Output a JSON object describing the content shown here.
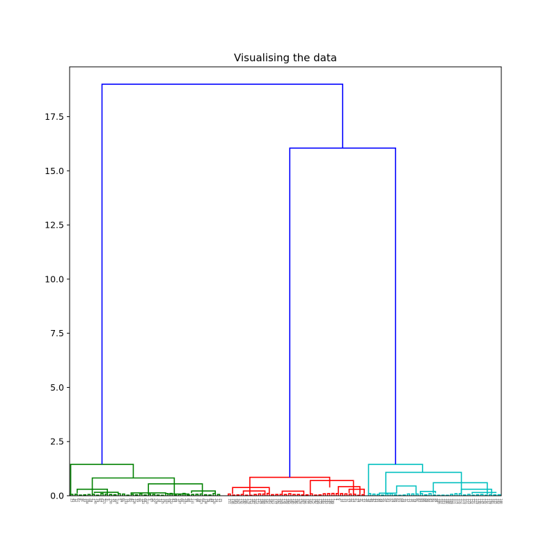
{
  "chart_data": {
    "type": "dendrogram",
    "title": "Visualising the data",
    "xlabel": "",
    "ylabel": "",
    "ylim": [
      0,
      19.8
    ],
    "yticks": [
      {
        "value": 0.0,
        "label": "0.0"
      },
      {
        "value": 2.5,
        "label": "2.5"
      },
      {
        "value": 5.0,
        "label": "5.0"
      },
      {
        "value": 7.5,
        "label": "7.5"
      },
      {
        "value": 10.0,
        "label": "10.0"
      },
      {
        "value": 12.5,
        "label": "12.5"
      },
      {
        "value": 15.0,
        "label": "15.0"
      },
      {
        "value": 17.5,
        "label": "17.5"
      }
    ],
    "leaf_count": 200,
    "colors": {
      "top_links": "#0000ff",
      "cluster_green": "#008000",
      "cluster_red": "#ff0000",
      "cluster_cyan": "#00bfbf"
    },
    "top_merges": [
      {
        "left": "cluster-green",
        "right": "merge-red-cyan",
        "height": 19.0
      },
      {
        "left": "cluster-red",
        "right": "cluster-cyan",
        "height": 16.05,
        "name": "merge-red-cyan"
      }
    ],
    "clusters": [
      {
        "name": "cluster-green",
        "color": "#008000",
        "leaf_range": [
          0,
          70
        ],
        "root_height": 1.45,
        "merges": [
          {
            "x1": 0.5,
            "x2": 29.5,
            "h": 1.45
          },
          {
            "x1": 10.5,
            "x2": 48.5,
            "h": 0.82
          },
          {
            "x1": 3.5,
            "x2": 17.5,
            "h": 0.3
          },
          {
            "x1": 36.5,
            "x2": 61.5,
            "h": 0.55
          },
          {
            "x1": 56.5,
            "x2": 67.5,
            "h": 0.22
          },
          {
            "x1": 11.5,
            "x2": 22.5,
            "h": 0.16
          },
          {
            "x1": 28.5,
            "x2": 44.5,
            "h": 0.13
          },
          {
            "x1": 45.5,
            "x2": 55.5,
            "h": 0.08
          }
        ],
        "leaf_labels": [
          "23",
          "45",
          "12",
          "67",
          "8",
          "91",
          "33",
          "104",
          "56",
          "78",
          "2",
          "140",
          "19",
          "87",
          "63",
          "115",
          "41",
          "9",
          "150",
          "72",
          "30",
          "118",
          "5",
          "99",
          "61",
          "133",
          "14",
          "82",
          "47",
          "126",
          "37",
          "95",
          "21",
          "143",
          "68",
          "110",
          "3",
          "85",
          "52",
          "128",
          "26",
          "74",
          "135",
          "16",
          "101",
          "59",
          "122",
          "43",
          "89",
          "11",
          "147",
          "66",
          "107",
          "29",
          "80",
          "53",
          "131",
          "7",
          "96",
          "38",
          "113",
          "64",
          "138",
          "18",
          "92",
          "49",
          "120",
          "34",
          "77",
          "25"
        ]
      },
      {
        "name": "cluster-red",
        "color": "#ff0000",
        "leaf_range": [
          73,
          138
        ],
        "root_height": 0.85,
        "merges": [
          {
            "x1": 83.5,
            "x2": 120.5,
            "h": 0.85
          },
          {
            "x1": 75.5,
            "x2": 92.5,
            "h": 0.38
          },
          {
            "x1": 111.5,
            "x2": 131.5,
            "h": 0.7
          },
          {
            "x1": 124.5,
            "x2": 134.5,
            "h": 0.42
          },
          {
            "x1": 80.5,
            "x2": 90.5,
            "h": 0.22
          },
          {
            "x1": 98.5,
            "x2": 108.5,
            "h": 0.21
          },
          {
            "x1": 129.5,
            "x2": 136.5,
            "h": 0.3
          }
        ],
        "leaf_labels": [
          "151",
          "170",
          "158",
          "183",
          "162",
          "176",
          "155",
          "190",
          "166",
          "179",
          "153",
          "187",
          "160",
          "173",
          "157",
          "194",
          "168",
          "181",
          "152",
          "185",
          "163",
          "177",
          "159",
          "192",
          "169",
          "174",
          "154",
          "188",
          "165",
          "180",
          "156",
          "196",
          "161",
          "178",
          "167",
          "186",
          "171",
          "164",
          "195",
          "175",
          "182",
          "189",
          "172",
          "184",
          "191",
          "193",
          "197",
          "198",
          "199",
          "1",
          "4",
          "6",
          "10",
          "13",
          "15",
          "17",
          "20",
          "22",
          "24",
          "27",
          "28",
          "31",
          "32",
          "35",
          "36"
        ]
      },
      {
        "name": "cluster-cyan",
        "color": "#00bfbf",
        "leaf_range": [
          138,
          200
        ],
        "root_height": 1.45,
        "merges": [
          {
            "x1": 138.5,
            "x2": 163.5,
            "h": 1.45
          },
          {
            "x1": 146.5,
            "x2": 181.5,
            "h": 1.08
          },
          {
            "x1": 151.5,
            "x2": 160.5,
            "h": 0.45
          },
          {
            "x1": 168.5,
            "x2": 193.5,
            "h": 0.6
          },
          {
            "x1": 181.5,
            "x2": 195.5,
            "h": 0.3
          },
          {
            "x1": 162.5,
            "x2": 169.5,
            "h": 0.2
          },
          {
            "x1": 143.5,
            "x2": 151.5,
            "h": 0.12
          },
          {
            "x1": 186.5,
            "x2": 197.5,
            "h": 0.15
          }
        ],
        "leaf_labels": [
          "39",
          "40",
          "42",
          "44",
          "46",
          "48",
          "50",
          "51",
          "54",
          "55",
          "57",
          "58",
          "60",
          "62",
          "65",
          "69",
          "70",
          "71",
          "73",
          "75",
          "76",
          "79",
          "81",
          "83",
          "84",
          "86",
          "88",
          "90",
          "93",
          "94",
          "97",
          "98",
          "100",
          "102",
          "103",
          "105",
          "106",
          "108",
          "109",
          "111",
          "112",
          "114",
          "116",
          "117",
          "119",
          "121",
          "123",
          "124",
          "125",
          "127",
          "129",
          "130",
          "132",
          "134",
          "136",
          "137",
          "139",
          "141",
          "142",
          "144",
          "145",
          "146"
        ]
      }
    ]
  }
}
